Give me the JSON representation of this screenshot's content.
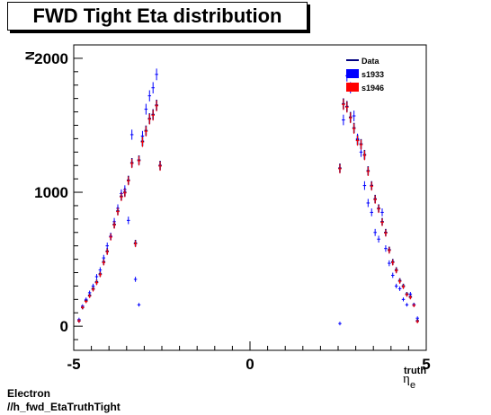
{
  "chart_data": {
    "type": "scatter",
    "title": "FWD Tight Eta distribution",
    "ylabel": "N",
    "xlabel_main": "η",
    "xlabel_sub": "e",
    "xlabel_sup": "truth",
    "xlim": [
      -5,
      5
    ],
    "ylim": [
      -180,
      2100
    ],
    "xticks": [
      -5,
      0,
      5
    ],
    "yticks": [
      0,
      1000,
      2000
    ],
    "legend_position": "top-right",
    "colors": {
      "s1933": "#0000ff",
      "s1946": "#ff0000",
      "data": "#000080"
    },
    "series": [
      {
        "name": "Data",
        "marker": "errorbar",
        "color": "#000080",
        "x": [
          -4.85,
          -4.75,
          -4.65,
          -4.55,
          -4.45,
          -4.35,
          -4.25,
          -4.15,
          -4.05,
          -3.95,
          -3.85,
          -3.75,
          -3.65,
          -3.55,
          -3.45,
          -3.35,
          -3.25,
          -3.15,
          -3.05,
          -2.95,
          -2.85,
          -2.75,
          -2.65,
          -2.55,
          2.55,
          2.65,
          2.75,
          2.85,
          2.95,
          3.05,
          3.15,
          3.25,
          3.35,
          3.45,
          3.55,
          3.65,
          3.75,
          3.85,
          3.95,
          4.05,
          4.15,
          4.25,
          4.35,
          4.45,
          4.55,
          4.65,
          4.75,
          4.85
        ],
        "y": [
          40,
          140,
          190,
          230,
          280,
          330,
          390,
          480,
          560,
          670,
          760,
          860,
          970,
          1000,
          1090,
          1220,
          620,
          1240,
          1380,
          1460,
          1550,
          1580,
          1650,
          1200,
          1180,
          1660,
          1640,
          1560,
          1480,
          1390,
          1360,
          1280,
          1160,
          1050,
          950,
          880,
          780,
          700,
          570,
          480,
          420,
          340,
          300,
          240,
          220,
          160,
          40,
          0
        ]
      },
      {
        "name": "s1933",
        "marker": "cross",
        "color": "#0000ff",
        "x": [
          -4.85,
          -4.75,
          -4.65,
          -4.55,
          -4.45,
          -4.35,
          -4.25,
          -4.15,
          -4.05,
          -3.95,
          -3.85,
          -3.75,
          -3.65,
          -3.55,
          -3.45,
          -3.35,
          -3.25,
          -3.15,
          -3.05,
          -2.95,
          -2.85,
          -2.75,
          -2.65,
          -2.55,
          2.55,
          2.65,
          2.75,
          2.85,
          2.95,
          3.05,
          3.15,
          3.25,
          3.35,
          3.45,
          3.55,
          3.65,
          3.75,
          3.85,
          3.95,
          4.05,
          4.15,
          4.25,
          4.35,
          4.45,
          4.55,
          4.65,
          4.75,
          4.85
        ],
        "y": [
          50,
          150,
          200,
          250,
          300,
          370,
          420,
          510,
          600,
          670,
          780,
          880,
          990,
          1020,
          790,
          1430,
          350,
          160,
          1420,
          1620,
          1720,
          1780,
          1880,
          0,
          20,
          1540,
          1870,
          1780,
          1570,
          1400,
          1300,
          1050,
          920,
          850,
          700,
          650,
          850,
          580,
          470,
          380,
          300,
          280,
          200,
          160,
          240,
          160,
          60,
          0
        ]
      },
      {
        "name": "s1946",
        "marker": "cross",
        "color": "#ff0000",
        "x": [
          -4.85,
          -4.75,
          -4.65,
          -4.55,
          -4.45,
          -4.35,
          -4.25,
          -4.15,
          -4.05,
          -3.95,
          -3.85,
          -3.75,
          -3.65,
          -3.55,
          -3.45,
          -3.35,
          -3.25,
          -3.15,
          -3.05,
          -2.95,
          -2.85,
          -2.75,
          -2.65,
          -2.55,
          2.55,
          2.65,
          2.75,
          2.85,
          2.95,
          3.05,
          3.15,
          3.25,
          3.35,
          3.45,
          3.55,
          3.65,
          3.75,
          3.85,
          3.95,
          4.05,
          4.15,
          4.25,
          4.35,
          4.45,
          4.55,
          4.65,
          4.75,
          4.85
        ],
        "y": [
          40,
          140,
          185,
          225,
          275,
          325,
          385,
          475,
          555,
          665,
          755,
          855,
          965,
          995,
          1085,
          1215,
          615,
          1235,
          1375,
          1455,
          1545,
          1575,
          1645,
          1195,
          1175,
          1655,
          1635,
          1555,
          1475,
          1385,
          1355,
          1275,
          1155,
          1045,
          945,
          875,
          775,
          695,
          565,
          475,
          415,
          335,
          295,
          235,
          215,
          155,
          35,
          0
        ]
      }
    ]
  },
  "footer": {
    "line1": "Electron",
    "line2": "//h_fwd_EtaTruthTight"
  }
}
